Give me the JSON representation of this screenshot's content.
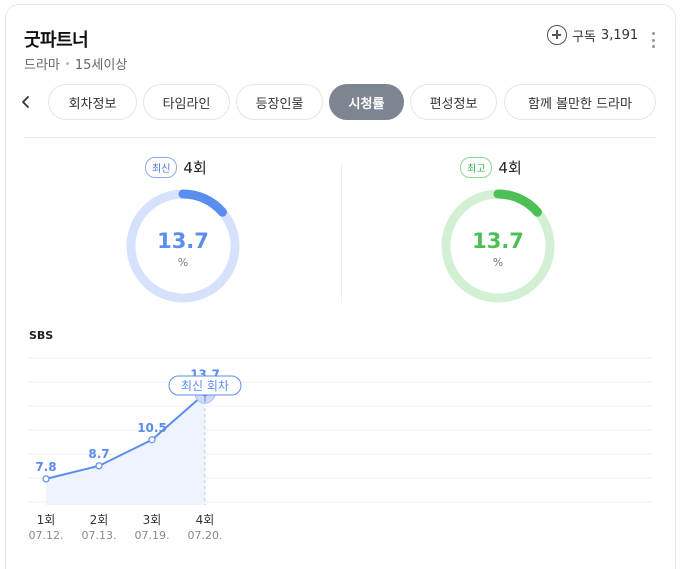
{
  "program": {
    "title": "굿파트너",
    "genre": "드라마",
    "rating": "15세이상"
  },
  "subscribe": {
    "label": "구독",
    "count": "3,191"
  },
  "tabs": [
    {
      "label": "회차정보",
      "active": false
    },
    {
      "label": "타임라인",
      "active": false
    },
    {
      "label": "등장인물",
      "active": false
    },
    {
      "label": "시청률",
      "active": true
    },
    {
      "label": "편성정보",
      "active": false
    },
    {
      "label": "함께 볼만한 드라마",
      "active": false
    }
  ],
  "latest": {
    "tag": "최신",
    "episode": "4회",
    "value": "13.7",
    "unit": "%",
    "fraction": 0.137,
    "color": "#5b8def",
    "track_color": "#d6e2fb"
  },
  "best": {
    "tag": "최고",
    "episode": "4회",
    "value": "13.7",
    "unit": "%",
    "fraction": 0.137,
    "color": "#4cbf55",
    "track_color": "#d3f0d5"
  },
  "chart_data": {
    "type": "line",
    "title": "SBS",
    "categories": [
      "1회",
      "2회",
      "3회",
      "4회"
    ],
    "dates": [
      "07.12.",
      "07.13.",
      "07.19.",
      "07.20."
    ],
    "series": [
      {
        "values": [
          7.8,
          8.7,
          10.5,
          13.7
        ]
      }
    ],
    "value_labels": [
      "7.8",
      "8.7",
      "10.5",
      "13.7"
    ],
    "annotation": "최신 회차",
    "ylim": [
      6,
      16
    ],
    "grid": true,
    "color": "#5b8def"
  }
}
